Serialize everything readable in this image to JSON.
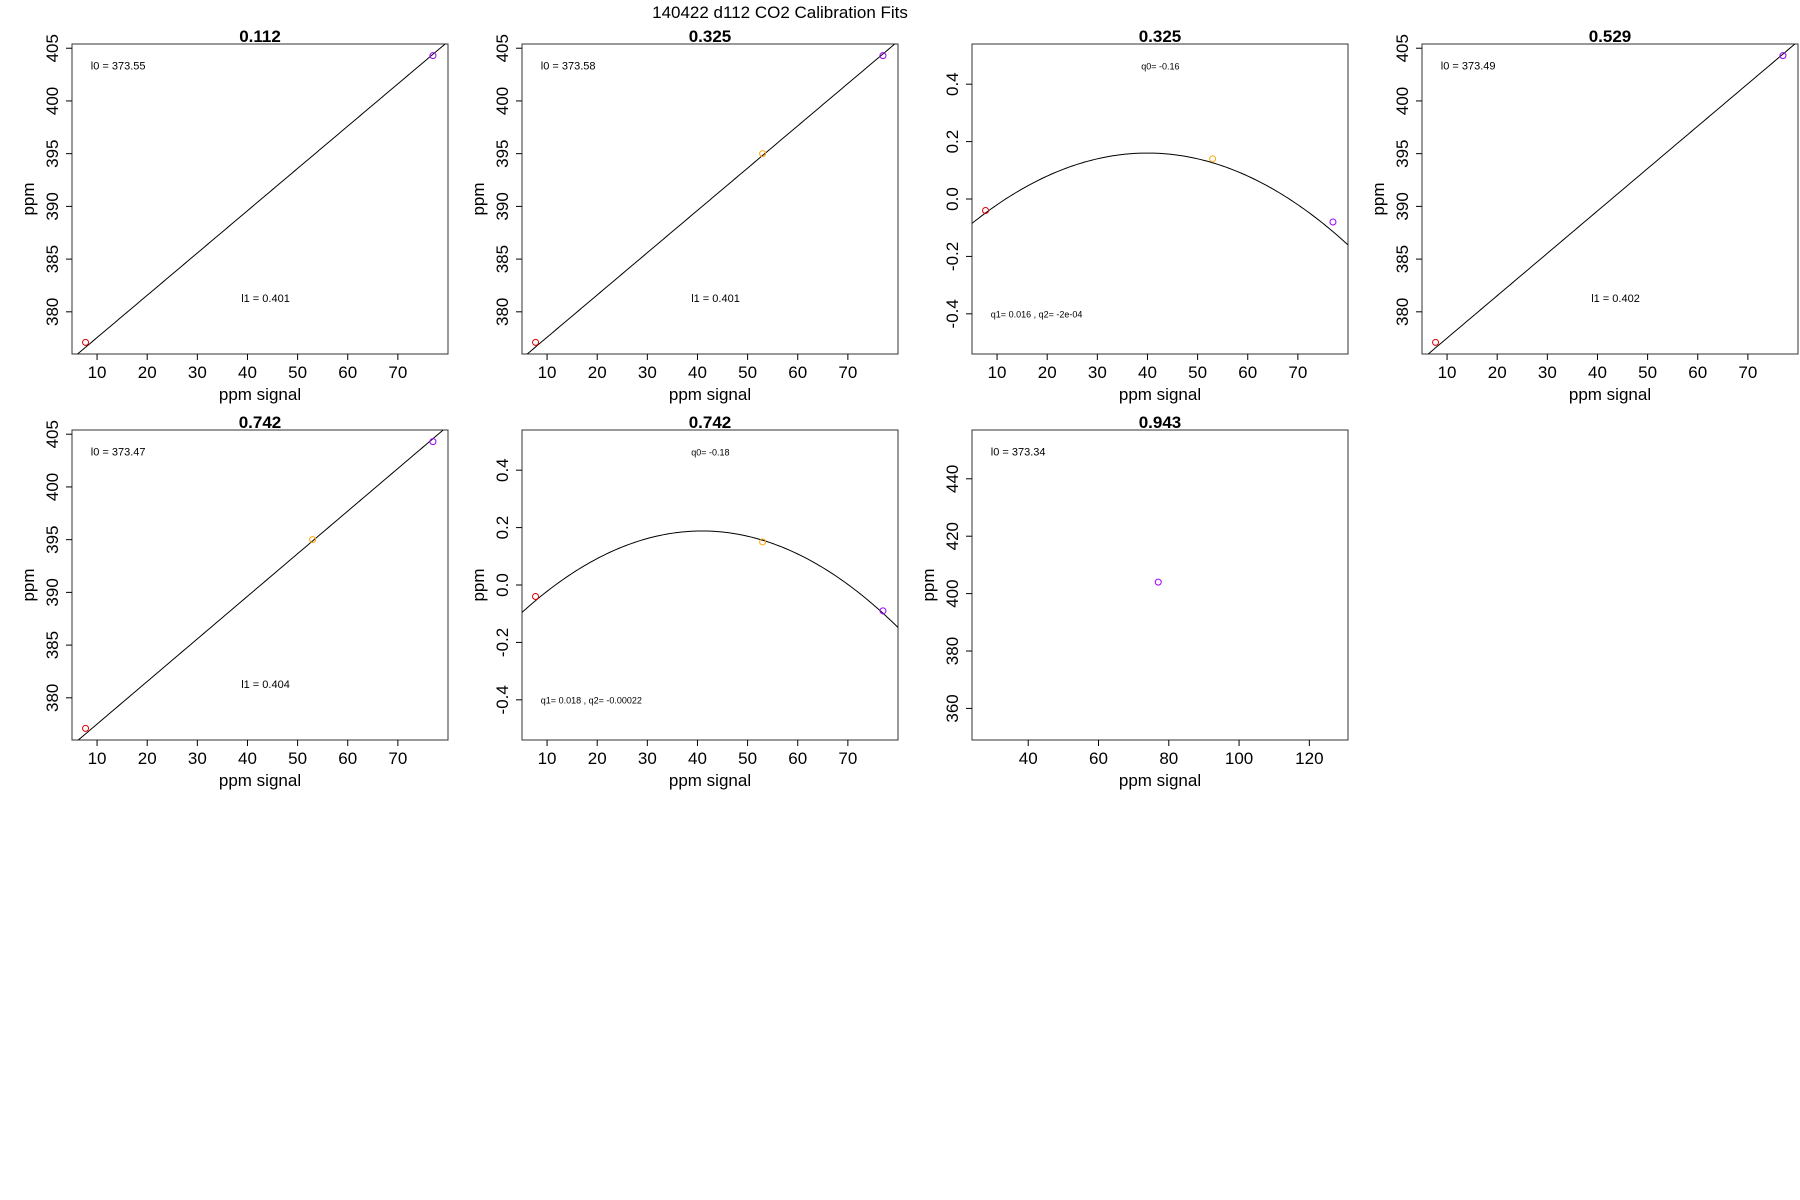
{
  "figure_title": "140422   d112   CO2 Calibration Fits",
  "colors": {
    "red": "#dd0000",
    "orange": "#ffa500",
    "purple": "#9900ff",
    "line": "#000000"
  },
  "chart_data": [
    {
      "type": "scatter",
      "title": "0.112",
      "xlabel": "ppm signal",
      "ylabel": "ppm",
      "xlim": [
        5,
        80
      ],
      "ylim": [
        376,
        405.4
      ],
      "xticks": [
        10,
        20,
        30,
        40,
        50,
        60,
        70
      ],
      "yticks": [
        380,
        385,
        390,
        395,
        400,
        405
      ],
      "points": [
        {
          "x": 7.7,
          "y": 377.1,
          "color": "red"
        },
        {
          "x": 77,
          "y": 404.3,
          "color": "purple"
        }
      ],
      "fit": {
        "kind": "linear",
        "intercept": 373.55,
        "slope": 0.401
      },
      "annotations": [
        "l0 =  373.55",
        "l1 =  0.401"
      ]
    },
    {
      "type": "scatter",
      "title": "0.325",
      "xlabel": "ppm signal",
      "ylabel": "ppm",
      "xlim": [
        5,
        80
      ],
      "ylim": [
        376,
        405.4
      ],
      "xticks": [
        10,
        20,
        30,
        40,
        50,
        60,
        70
      ],
      "yticks": [
        380,
        385,
        390,
        395,
        400,
        405
      ],
      "points": [
        {
          "x": 7.7,
          "y": 377.1,
          "color": "red"
        },
        {
          "x": 53,
          "y": 395,
          "color": "orange"
        },
        {
          "x": 77,
          "y": 404.3,
          "color": "purple"
        }
      ],
      "fit": {
        "kind": "linear",
        "intercept": 373.58,
        "slope": 0.401
      },
      "annotations": [
        "l0 =  373.58",
        "l1 =  0.401"
      ]
    },
    {
      "type": "scatter",
      "title": "0.325",
      "xlabel": "ppm signal",
      "ylabel": "",
      "xlim": [
        5,
        80
      ],
      "ylim": [
        -0.54,
        0.54
      ],
      "xticks": [
        10,
        20,
        30,
        40,
        50,
        60,
        70
      ],
      "yticks": [
        -0.4,
        -0.2,
        0.0,
        0.2,
        0.4
      ],
      "ytick_labels": [
        "-0.4",
        "-0.2",
        "0.0",
        "0.2",
        "0.4"
      ],
      "points": [
        {
          "x": 7.7,
          "y": -0.04,
          "color": "red"
        },
        {
          "x": 53,
          "y": 0.14,
          "color": "orange"
        },
        {
          "x": 77,
          "y": -0.08,
          "color": "purple"
        }
      ],
      "fit": {
        "kind": "quadratic",
        "q0": -0.16,
        "q1": 0.016,
        "q2": -0.0002
      },
      "annotations": [
        "q0= -0.16",
        "q1= 0.016 , q2= -2e-04"
      ]
    },
    {
      "type": "scatter",
      "title": "0.529",
      "xlabel": "ppm signal",
      "ylabel": "ppm",
      "xlim": [
        5,
        80
      ],
      "ylim": [
        376,
        405.4
      ],
      "xticks": [
        10,
        20,
        30,
        40,
        50,
        60,
        70
      ],
      "yticks": [
        380,
        385,
        390,
        395,
        400,
        405
      ],
      "points": [
        {
          "x": 7.7,
          "y": 377.1,
          "color": "red"
        },
        {
          "x": 77,
          "y": 404.3,
          "color": "purple"
        }
      ],
      "fit": {
        "kind": "linear",
        "intercept": 373.49,
        "slope": 0.402
      },
      "annotations": [
        "l0 =  373.49",
        "l1 =  0.402"
      ]
    },
    {
      "type": "scatter",
      "title": "0.742",
      "xlabel": "ppm signal",
      "ylabel": "ppm",
      "xlim": [
        5,
        80
      ],
      "ylim": [
        376,
        405.4
      ],
      "xticks": [
        10,
        20,
        30,
        40,
        50,
        60,
        70
      ],
      "yticks": [
        380,
        385,
        390,
        395,
        400,
        405
      ],
      "points": [
        {
          "x": 7.7,
          "y": 377.1,
          "color": "red"
        },
        {
          "x": 53,
          "y": 395,
          "color": "orange"
        },
        {
          "x": 77,
          "y": 404.3,
          "color": "purple"
        }
      ],
      "fit": {
        "kind": "linear",
        "intercept": 373.47,
        "slope": 0.404
      },
      "annotations": [
        "l0 =  373.47",
        "l1 =  0.404"
      ]
    },
    {
      "type": "scatter",
      "title": "0.742",
      "xlabel": "ppm signal",
      "ylabel": "ppm",
      "xlim": [
        5,
        80
      ],
      "ylim": [
        -0.54,
        0.54
      ],
      "xticks": [
        10,
        20,
        30,
        40,
        50,
        60,
        70
      ],
      "yticks": [
        -0.4,
        -0.2,
        0.0,
        0.2,
        0.4
      ],
      "ytick_labels": [
        "-0.4",
        "-0.2",
        "0.0",
        "0.2",
        "0.4"
      ],
      "points": [
        {
          "x": 7.7,
          "y": -0.04,
          "color": "red"
        },
        {
          "x": 53,
          "y": 0.15,
          "color": "orange"
        },
        {
          "x": 77,
          "y": -0.09,
          "color": "purple"
        }
      ],
      "fit": {
        "kind": "quadratic",
        "q0": -0.18,
        "q1": 0.018,
        "q2": -0.00022
      },
      "annotations": [
        "q0= -0.18",
        "q1= 0.018 , q2= -0.00022"
      ]
    },
    {
      "type": "scatter",
      "title": "0.943",
      "xlabel": "ppm signal",
      "ylabel": "ppm",
      "xlim": [
        24,
        131
      ],
      "ylim": [
        349,
        457
      ],
      "xticks": [
        40,
        60,
        80,
        100,
        120
      ],
      "yticks": [
        360,
        380,
        400,
        420,
        440
      ],
      "points": [
        {
          "x": 77,
          "y": 404,
          "color": "purple"
        }
      ],
      "fit": null,
      "annotations": [
        "l0 =  373.34"
      ]
    }
  ]
}
